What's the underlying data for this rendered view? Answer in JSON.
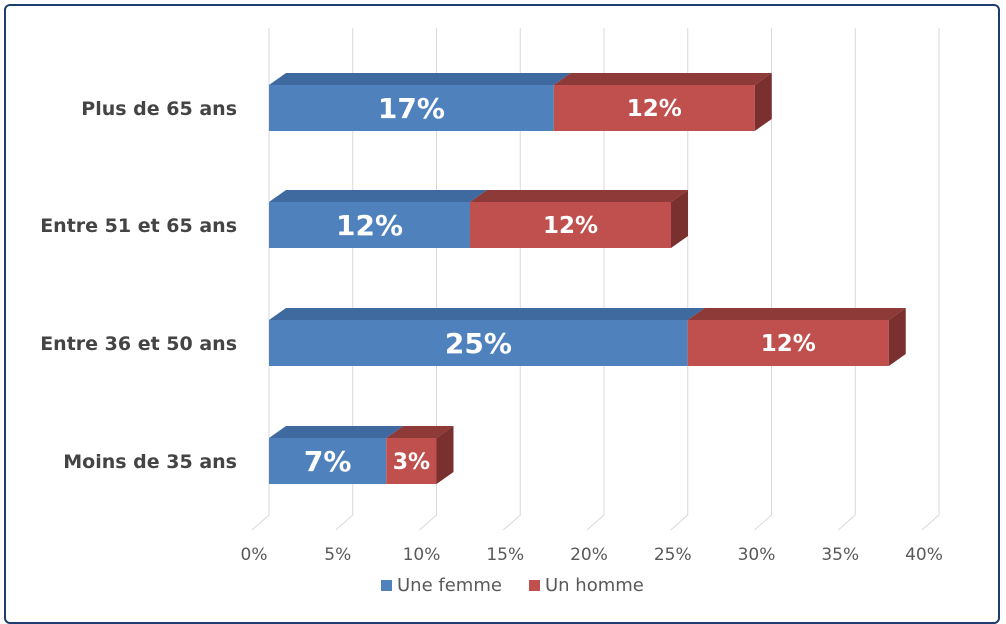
{
  "chart_data": {
    "type": "bar",
    "orientation": "horizontal",
    "stacked": true,
    "three_d": true,
    "categories": [
      "Plus de 65 ans",
      "Entre 51 et 65 ans",
      "Entre 36 et 50 ans",
      "Moins de 35 ans"
    ],
    "series": [
      {
        "name": "Une femme",
        "values": [
          17,
          12,
          25,
          7
        ],
        "labels": [
          "17%",
          "12%",
          "25%",
          "7%"
        ],
        "color": "#4f81bd"
      },
      {
        "name": "Un homme",
        "values": [
          12,
          12,
          12,
          3
        ],
        "labels": [
          "12%",
          "12%",
          "12%",
          "3%"
        ],
        "color": "#c0504d"
      }
    ],
    "xlim": [
      0,
      40
    ],
    "xticks": [
      0,
      5,
      10,
      15,
      20,
      25,
      30,
      35,
      40
    ],
    "xtick_labels": [
      "0%",
      "5%",
      "10%",
      "15%",
      "20%",
      "25%",
      "30%",
      "35%",
      "40%"
    ],
    "grid": true,
    "legend_position": "bottom",
    "title": "",
    "xlabel": "",
    "ylabel": ""
  },
  "colors": {
    "frame_border": "#1f3d6e",
    "gridline": "#d9d9d9",
    "female_top": "#3e6aa0",
    "male_top": "#8e3a38",
    "male_side": "#7a302e"
  }
}
